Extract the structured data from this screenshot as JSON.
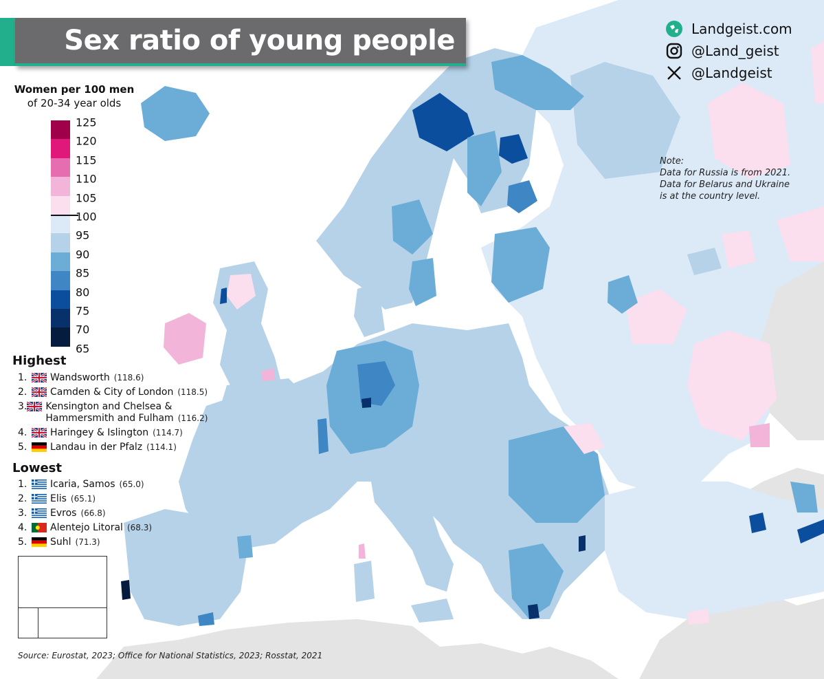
{
  "title": "Sex ratio of young people",
  "brand": {
    "website": "Landgeist.com",
    "instagram": "@Land_geist",
    "x_handle": "@Landgeist",
    "website_icon": "globe-icon",
    "instagram_icon": "instagram-icon",
    "x_icon": "x-logo-icon"
  },
  "legend": {
    "title_line1": "Women per 100 men",
    "title_line2": "of 20-34 year olds",
    "ticks": [
      "125",
      "120",
      "115",
      "110",
      "105",
      "100",
      "95",
      "90",
      "85",
      "80",
      "75",
      "70",
      "65"
    ],
    "colors": [
      "#a0004a",
      "#e0187a",
      "#e66eb0",
      "#f2b4d8",
      "#fbdfee",
      "#dce9f6",
      "#b5d2e8",
      "#6cadd8",
      "#3f86c4",
      "#0c4e9e",
      "#08306b",
      "#061c3e"
    ]
  },
  "colors": {
    "sea": "#ffffff",
    "non_data_land": "#e4e4e4",
    "title_bar": "#6b6b6d",
    "accent": "#22b08c"
  },
  "note": {
    "line1": "Note:",
    "line2": "Data for Russia is from 2021.",
    "line3": "Data for Belarus and Ukraine",
    "line4": "is at the country level."
  },
  "highest": {
    "heading": "Highest",
    "items": [
      {
        "rank": "1.",
        "name": "Wandsworth",
        "value": "(118.6)",
        "flag": "uk-flag-icon"
      },
      {
        "rank": "2.",
        "name": "Camden & City of London",
        "value": "(118.5)",
        "flag": "uk-flag-icon"
      },
      {
        "rank": "3.",
        "name": "Kensington and Chelsea & Hammersmith and Fulham",
        "value": "(116.2)",
        "flag": "uk-flag-icon"
      },
      {
        "rank": "4.",
        "name": "Haringey & Islington",
        "value": "(114.7)",
        "flag": "uk-flag-icon"
      },
      {
        "rank": "5.",
        "name": "Landau in der Pfalz",
        "value": "(114.1)",
        "flag": "germany-flag-icon"
      }
    ]
  },
  "lowest": {
    "heading": "Lowest",
    "items": [
      {
        "rank": "1.",
        "name": "Icaria, Samos",
        "value": "(65.0)",
        "flag": "greece-flag-icon"
      },
      {
        "rank": "2.",
        "name": "Elis",
        "value": "(65.1)",
        "flag": "greece-flag-icon"
      },
      {
        "rank": "3.",
        "name": "Evros",
        "value": "(66.8)",
        "flag": "greece-flag-icon"
      },
      {
        "rank": "4.",
        "name": "Alentejo Litoral",
        "value": "(68.3)",
        "flag": "portugal-flag-icon"
      },
      {
        "rank": "5.",
        "name": "Suhl",
        "value": "(71.3)",
        "flag": "germany-flag-icon"
      }
    ]
  },
  "source": "Source: Eurostat, 2023; Office for National Statistics, 2023; Rosstat, 2021"
}
